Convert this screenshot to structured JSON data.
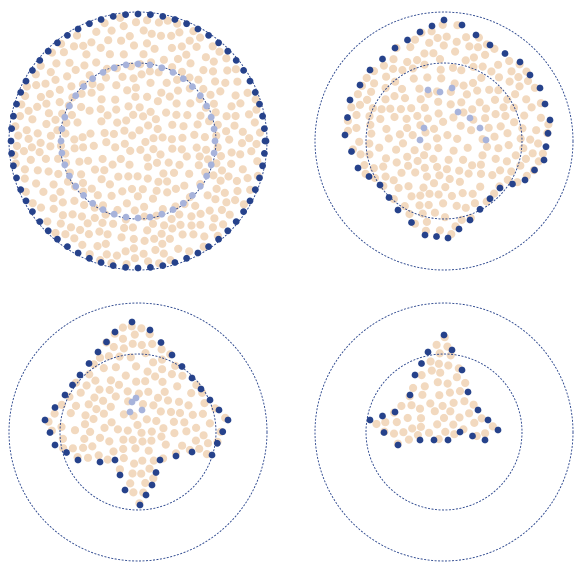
{
  "colors": {
    "background": "#ffffff",
    "interior_dot": "#f2d9bf",
    "boundary_dot_dark": "#26428b",
    "boundary_dot_light": "#a7b3db",
    "circle_stroke": "#26428b"
  },
  "panels": [
    {
      "id": "panel-1",
      "shape": "disc-with-inner-ring",
      "interior_fill": 1.0
    },
    {
      "id": "panel-2",
      "shape": "irregular-blob",
      "interior_fill": 0.85
    },
    {
      "id": "panel-3",
      "shape": "irregular-blob",
      "interior_fill": 0.7
    },
    {
      "id": "panel-4",
      "shape": "three-lobed-blob",
      "interior_fill": 0.45
    }
  ]
}
